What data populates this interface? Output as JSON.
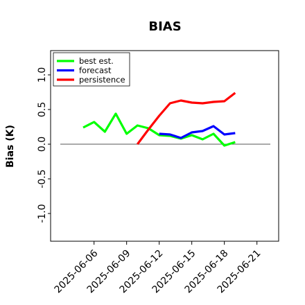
{
  "chart_data": {
    "type": "line",
    "title": "BIAS",
    "xlabel": "",
    "ylabel": "Bias (K)",
    "xlim": [
      "2025-06-02",
      "2025-06-23"
    ],
    "ylim": [
      -1.4,
      1.35
    ],
    "yticks": [
      -1.0,
      -0.5,
      0.0,
      0.5,
      1.0
    ],
    "ytick_labels": [
      "-1.0",
      "-0.5",
      "0.0",
      "0.5",
      "1.0"
    ],
    "xticks": [
      "2025-06-06",
      "2025-06-09",
      "2025-06-12",
      "2025-06-15",
      "2025-06-18",
      "2025-06-21"
    ],
    "xtick_labels": [
      "2025-06-06",
      "2025-06-09",
      "2025-06-12",
      "2025-06-15",
      "2025-06-18",
      "2025-06-21"
    ],
    "highlighted_xtick": "2025-06-12",
    "highlight_color": "#228b22",
    "reference_line": 0.0,
    "legend_position": "upper-left",
    "series": [
      {
        "name": "best est.",
        "color": "#00ff00",
        "x": [
          "2025-06-05",
          "2025-06-06",
          "2025-06-07",
          "2025-06-08",
          "2025-06-09",
          "2025-06-10",
          "2025-06-11",
          "2025-06-12",
          "2025-06-13",
          "2025-06-14",
          "2025-06-15",
          "2025-06-16",
          "2025-06-17",
          "2025-06-18",
          "2025-06-19"
        ],
        "values": [
          0.24,
          0.32,
          0.18,
          0.44,
          0.15,
          0.27,
          0.23,
          0.13,
          0.12,
          0.08,
          0.13,
          0.07,
          0.15,
          -0.02,
          0.03
        ]
      },
      {
        "name": "forecast",
        "color": "#0000ff",
        "x": [
          "2025-06-12",
          "2025-06-13",
          "2025-06-14",
          "2025-06-15",
          "2025-06-16",
          "2025-06-17",
          "2025-06-18",
          "2025-06-19"
        ],
        "values": [
          0.15,
          0.14,
          0.09,
          0.17,
          0.19,
          0.26,
          0.14,
          0.16
        ]
      },
      {
        "name": "persistence",
        "color": "#ff0000",
        "x": [
          "2025-06-10",
          "2025-06-11",
          "2025-06-12",
          "2025-06-13",
          "2025-06-14",
          "2025-06-15",
          "2025-06-16",
          "2025-06-17",
          "2025-06-18",
          "2025-06-19"
        ],
        "values": [
          0.0,
          0.21,
          0.41,
          0.59,
          0.63,
          0.6,
          0.59,
          0.61,
          0.62,
          0.74
        ]
      }
    ]
  }
}
